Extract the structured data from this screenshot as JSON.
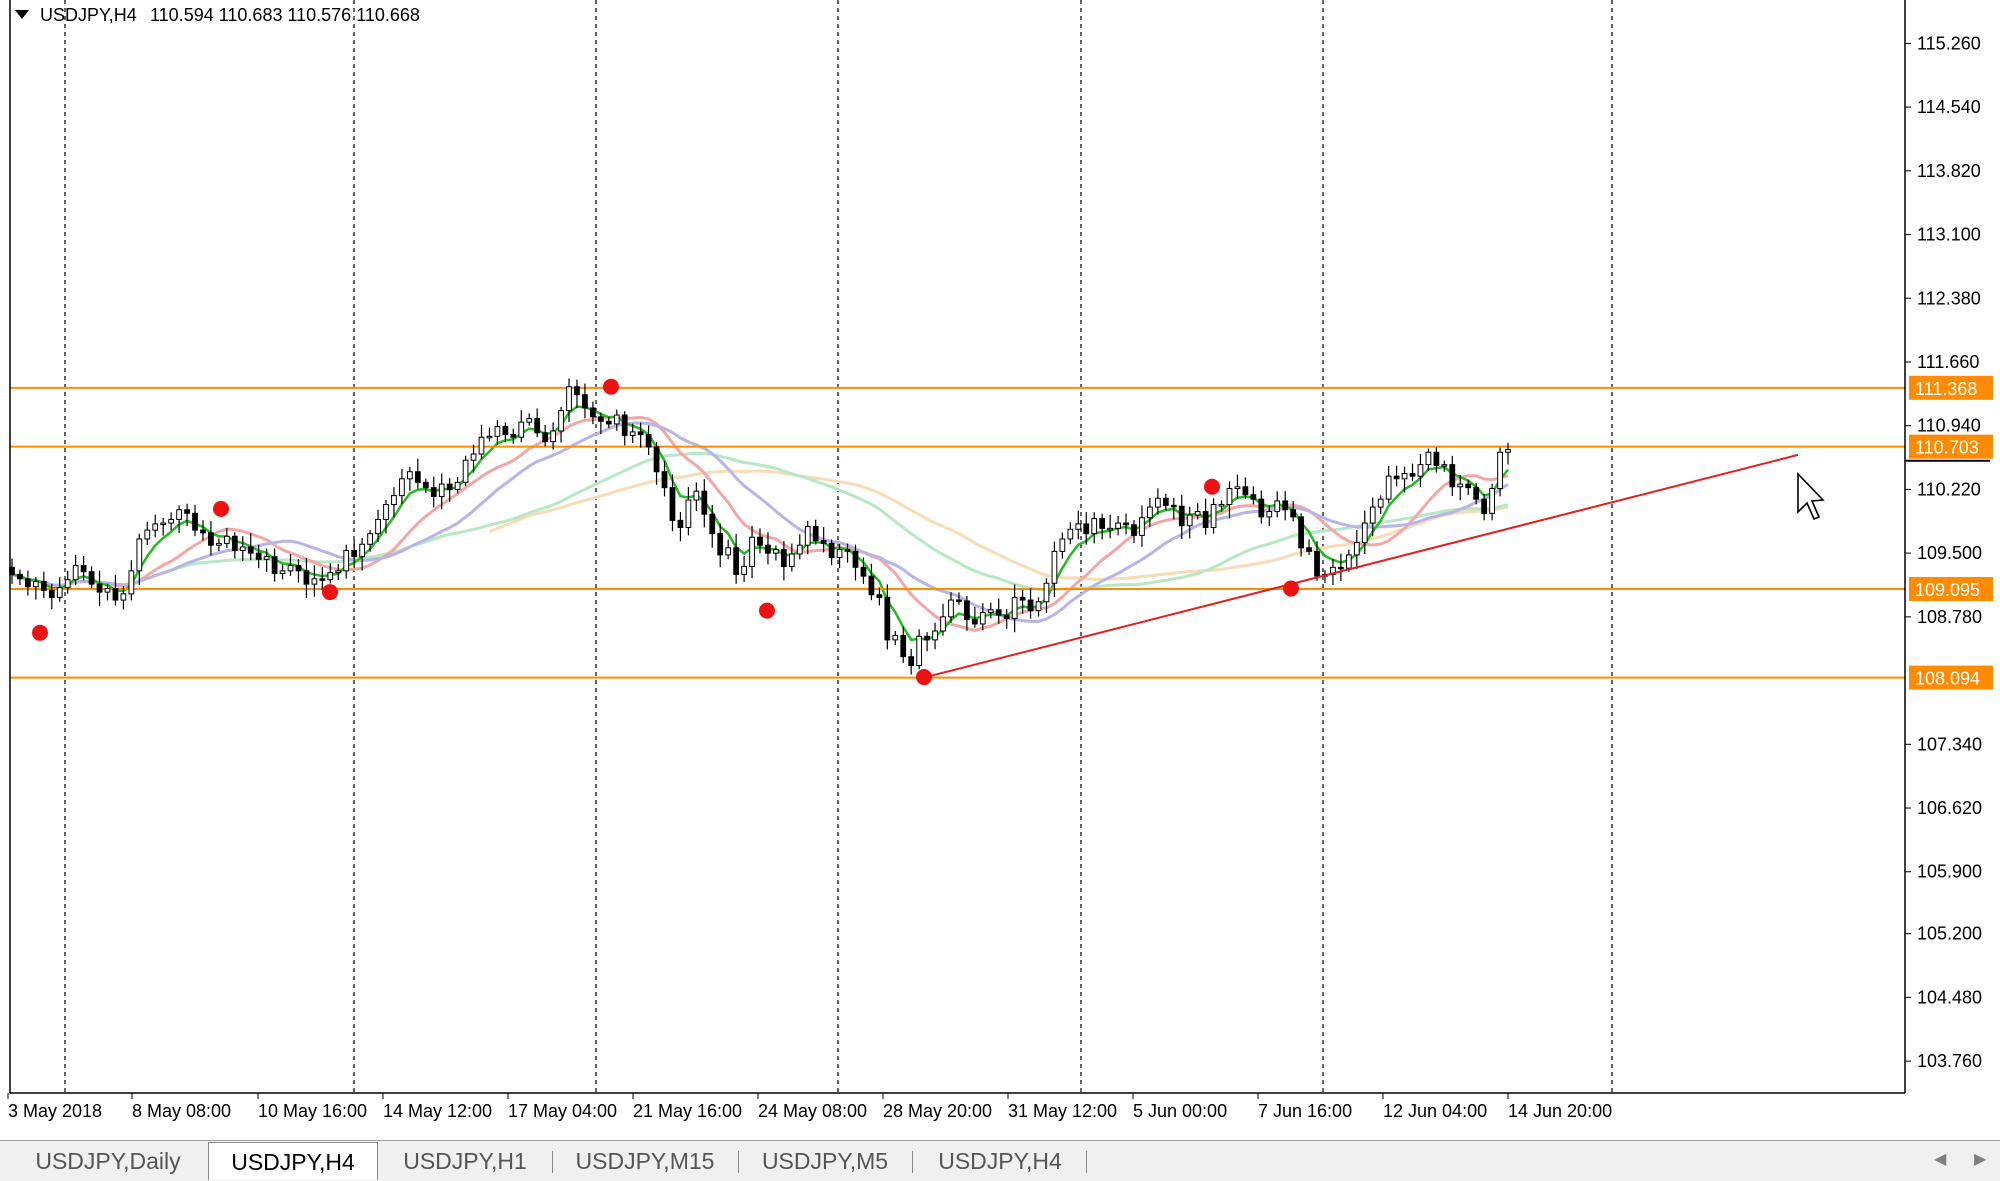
{
  "header": {
    "symbol": "USDJPY,H4",
    "ohlc": "110.594 110.683 110.576 110.668"
  },
  "tabs": [
    {
      "label": "USDJPY,Daily",
      "active": false
    },
    {
      "label": "USDJPY,H4",
      "active": true
    },
    {
      "label": "USDJPY,H1",
      "active": false
    },
    {
      "label": "USDJPY,M15",
      "active": false
    },
    {
      "label": "USDJPY,M5",
      "active": false
    },
    {
      "label": "USDJPY,H4",
      "active": false
    }
  ],
  "chart_data": {
    "type": "candlestick",
    "symbol": "USDJPY",
    "timeframe": "H4",
    "ylim": [
      103.4,
      115.75
    ],
    "y_ticks": [
      "115.260",
      "114.540",
      "113.820",
      "113.100",
      "112.380",
      "111.660",
      "110.940",
      "110.220",
      "109.500",
      "108.780",
      "107.340",
      "106.620",
      "105.900",
      "105.200",
      "104.480",
      "103.760"
    ],
    "x_ticks": [
      "3 May 2018",
      "8 May 08:00",
      "10 May 16:00",
      "14 May 12:00",
      "17 May 04:00",
      "21 May 16:00",
      "24 May 08:00",
      "28 May 20:00",
      "31 May 12:00",
      "5 Jun 00:00",
      "7 Jun 16:00",
      "12 Jun 04:00",
      "14 Jun 20:00"
    ],
    "horizontal_levels": [
      {
        "price": 111.368,
        "label": "111.368",
        "color": "#ff8c00"
      },
      {
        "price": 110.703,
        "label": "110.703",
        "color": "#ff8c00"
      },
      {
        "price": 109.095,
        "label": "109.095",
        "color": "#ff8c00"
      },
      {
        "price": 108.094,
        "label": "108.094",
        "color": "#ff8c00"
      }
    ],
    "current_price": 110.668,
    "trendline": {
      "from": [
        108.094,
        0
      ],
      "to": [
        110.61,
        1
      ],
      "color": "#e02020"
    },
    "swing_points": [
      108.6,
      110.0,
      109.06,
      111.38,
      108.85,
      108.1,
      110.25,
      109.1
    ],
    "colors": {
      "bull": "#ffffff",
      "bear": "#000000",
      "ema_fast": "#22bb22",
      "ma_red": "#f2a7a7",
      "ma_lavender": "#b8b4e6",
      "ma_lightgreen": "#b7e8c4",
      "ma_orange": "#f7dcb6",
      "level": "#ff8c00",
      "trend": "#e02020",
      "swing": "#ee1111"
    },
    "closes": [
      109.26,
      109.21,
      109.12,
      109.18,
      109.08,
      109.0,
      109.11,
      109.2,
      109.36,
      109.29,
      109.15,
      109.06,
      109.1,
      108.97,
      109.04,
      109.3,
      109.66,
      109.76,
      109.83,
      109.84,
      109.88,
      109.99,
      109.95,
      109.76,
      109.73,
      109.59,
      109.61,
      109.69,
      109.53,
      109.57,
      109.5,
      109.43,
      109.46,
      109.27,
      109.3,
      109.36,
      109.3,
      109.15,
      109.21,
      109.2,
      109.28,
      109.3,
      109.53,
      109.46,
      109.6,
      109.72,
      109.88,
      110.05,
      110.15,
      110.34,
      110.42,
      110.3,
      110.24,
      110.14,
      110.28,
      110.22,
      110.3,
      110.55,
      110.62,
      110.81,
      110.82,
      110.93,
      110.84,
      110.81,
      110.98,
      111.02,
      110.86,
      110.76,
      110.88,
      111.11,
      111.38,
      111.29,
      111.14,
      111.04,
      110.99,
      110.96,
      111.06,
      110.83,
      110.87,
      110.84,
      110.7,
      110.42,
      110.24,
      109.87,
      109.79,
      110.1,
      110.2,
      109.94,
      109.72,
      109.48,
      109.56,
      109.26,
      109.35,
      109.68,
      109.59,
      109.5,
      109.54,
      109.35,
      109.49,
      109.59,
      109.8,
      109.64,
      109.61,
      109.45,
      109.54,
      109.52,
      109.34,
      109.24,
      109.03,
      109.0,
      108.52,
      108.57,
      108.33,
      108.23,
      108.56,
      108.52,
      108.62,
      108.78,
      108.97,
      108.96,
      108.75,
      108.7,
      108.83,
      108.86,
      108.8,
      108.76,
      109.0,
      108.97,
      108.85,
      108.95,
      109.16,
      109.52,
      109.66,
      109.77,
      109.83,
      109.72,
      109.89,
      109.78,
      109.78,
      109.84,
      109.82,
      109.7,
      109.9,
      110.02,
      110.12,
      110.04,
      110.03,
      109.81,
      109.93,
      109.97,
      109.79,
      110.05,
      110.05,
      110.23,
      110.25,
      110.16,
      110.11,
      109.91,
      109.97,
      110.09,
      109.99,
      109.91,
      109.56,
      109.52,
      109.24,
      109.26,
      109.34,
      109.33,
      109.48,
      109.62,
      109.84,
      110.02,
      110.11,
      110.37,
      110.34,
      110.4,
      110.37,
      110.5,
      110.64,
      110.49,
      110.5,
      110.25,
      110.28,
      110.24,
      110.11,
      109.95,
      110.23,
      110.64,
      110.67
    ]
  }
}
